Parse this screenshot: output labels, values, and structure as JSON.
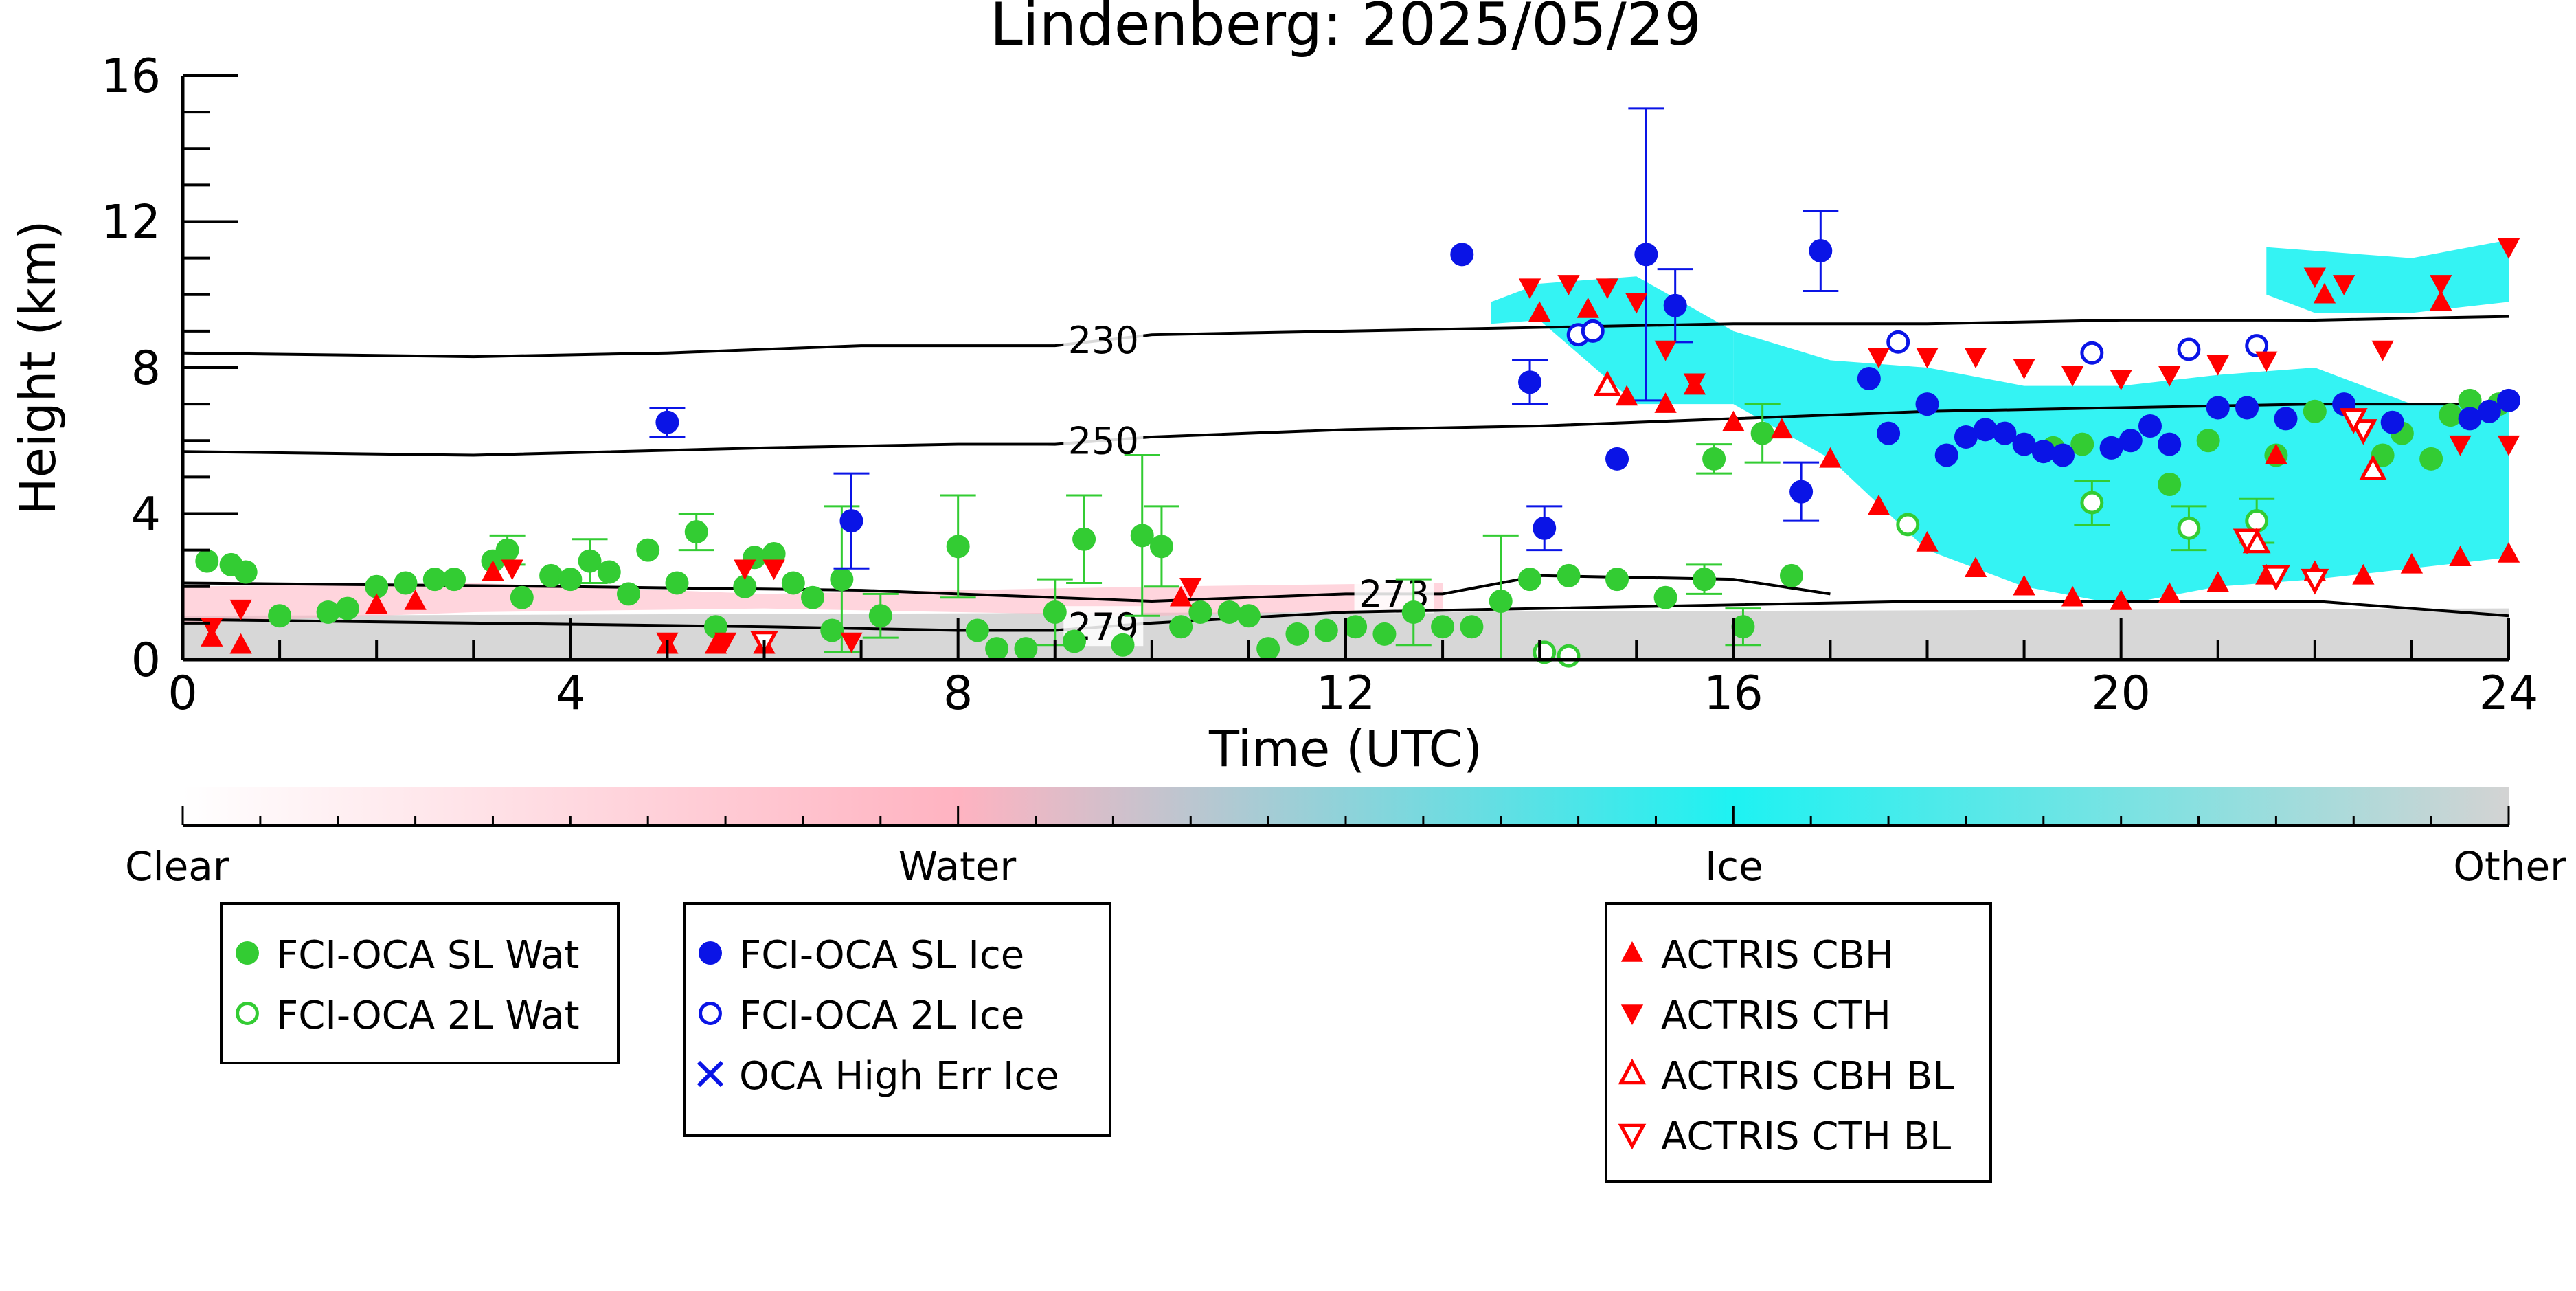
{
  "chart_data": {
    "type": "scatter",
    "title": "Lindenberg: 2025/05/29",
    "xlabel": "Time (UTC)",
    "ylabel": "Height (km)",
    "xlim": [
      0,
      24
    ],
    "ylim": [
      0,
      16
    ],
    "xticks": [
      0,
      4,
      8,
      12,
      16,
      20,
      24
    ],
    "yticks": [
      0,
      4,
      8,
      12,
      16
    ],
    "grid": false,
    "colorbar": {
      "labels": [
        "Clear",
        "Water",
        "Ice",
        "Other"
      ],
      "positions": [
        0,
        0.333,
        0.667,
        1
      ],
      "colors": [
        "#ffffff",
        "#ffb3c1",
        "#1ef2f2",
        "#d3d3d3"
      ]
    },
    "contours": [
      {
        "label": "230",
        "label_x": 9.5,
        "x": [
          0,
          3,
          5,
          7,
          9,
          10,
          12,
          14,
          16,
          18,
          20,
          22,
          24
        ],
        "y": [
          8.4,
          8.3,
          8.4,
          8.6,
          8.6,
          8.9,
          9.0,
          9.1,
          9.2,
          9.2,
          9.3,
          9.3,
          9.4
        ]
      },
      {
        "label": "250",
        "label_x": 9.5,
        "x": [
          0,
          3,
          6,
          8,
          9,
          10,
          12,
          14,
          16,
          18,
          20,
          22,
          24
        ],
        "y": [
          5.7,
          5.6,
          5.8,
          5.9,
          5.9,
          6.1,
          6.3,
          6.4,
          6.6,
          6.8,
          6.9,
          7.0,
          7.0
        ]
      },
      {
        "label": "273",
        "label_x": 12.5,
        "x": [
          0,
          4,
          7,
          9,
          10,
          11,
          12,
          13,
          14,
          16,
          17
        ],
        "y": [
          2.1,
          2.0,
          1.9,
          1.7,
          1.6,
          1.7,
          1.8,
          1.8,
          2.3,
          2.2,
          1.8
        ]
      },
      {
        "label": "279",
        "label_x": 9.5,
        "x": [
          0,
          3,
          6,
          8,
          9,
          10,
          12,
          14,
          16,
          18,
          20,
          22,
          24
        ],
        "y": [
          1.1,
          1.0,
          0.9,
          0.8,
          0.8,
          1.0,
          1.3,
          1.4,
          1.5,
          1.6,
          1.6,
          1.6,
          1.2
        ]
      }
    ],
    "background_regions": [
      {
        "class": "Other",
        "color": "#d3d3d3",
        "x": [
          0,
          24
        ],
        "y0": [
          0,
          0
        ],
        "y1": [
          1.2,
          1.4
        ]
      },
      {
        "class": "Ice",
        "color": "#1ef2f2",
        "x": [
          16,
          17,
          18,
          19,
          20,
          21,
          22,
          23,
          24
        ],
        "y0": [
          7.0,
          5.5,
          3.0,
          2.0,
          1.5,
          2.0,
          2.2,
          2.5,
          2.8
        ],
        "y1": [
          9.0,
          8.2,
          8.0,
          7.5,
          7.5,
          7.8,
          8.0,
          7.0,
          7.0
        ]
      },
      {
        "class": "Ice",
        "color": "#1ef2f2",
        "x": [
          13.5,
          14,
          15,
          16
        ],
        "y0": [
          9.2,
          9.3,
          7.0,
          7.0
        ],
        "y1": [
          9.8,
          10.3,
          10.5,
          9.0
        ]
      },
      {
        "class": "Ice",
        "color": "#1ef2f2",
        "x": [
          21.5,
          22,
          23,
          24
        ],
        "y0": [
          10.0,
          9.5,
          9.5,
          9.8
        ],
        "y1": [
          11.3,
          11.2,
          11.0,
          11.5
        ]
      },
      {
        "class": "Water",
        "color": "#ffb3c1",
        "x": [
          0,
          3,
          6,
          10,
          13
        ],
        "y0": [
          1.0,
          1.3,
          1.4,
          1.2,
          1.4
        ],
        "y1": [
          2.0,
          2.1,
          1.8,
          2.0,
          2.1
        ]
      }
    ],
    "series": [
      {
        "name": "FCI-OCA SL Wat",
        "marker": "circle-filled",
        "color": "#33cc33",
        "points": [
          {
            "x": 0.25,
            "y": 2.7
          },
          {
            "x": 0.5,
            "y": 2.6
          },
          {
            "x": 0.65,
            "y": 2.4
          },
          {
            "x": 1.0,
            "y": 1.2
          },
          {
            "x": 1.5,
            "y": 1.3
          },
          {
            "x": 1.7,
            "y": 1.4
          },
          {
            "x": 2.0,
            "y": 2.0
          },
          {
            "x": 2.3,
            "y": 2.1
          },
          {
            "x": 2.6,
            "y": 2.2
          },
          {
            "x": 2.8,
            "y": 2.2
          },
          {
            "x": 3.2,
            "y": 2.7
          },
          {
            "x": 3.35,
            "y": 3.0,
            "err": 0.4
          },
          {
            "x": 3.5,
            "y": 1.7
          },
          {
            "x": 3.8,
            "y": 2.3
          },
          {
            "x": 4.0,
            "y": 2.2
          },
          {
            "x": 4.2,
            "y": 2.7,
            "err": 0.6
          },
          {
            "x": 4.4,
            "y": 2.4
          },
          {
            "x": 4.6,
            "y": 1.8
          },
          {
            "x": 4.8,
            "y": 3.0
          },
          {
            "x": 5.1,
            "y": 2.1
          },
          {
            "x": 5.3,
            "y": 3.5,
            "err": 0.5
          },
          {
            "x": 5.5,
            "y": 0.9
          },
          {
            "x": 5.8,
            "y": 2.0
          },
          {
            "x": 5.9,
            "y": 2.8
          },
          {
            "x": 6.1,
            "y": 2.9
          },
          {
            "x": 6.3,
            "y": 2.1
          },
          {
            "x": 6.5,
            "y": 1.7
          },
          {
            "x": 6.7,
            "y": 0.8
          },
          {
            "x": 6.8,
            "y": 2.2,
            "err": 2.0
          },
          {
            "x": 7.2,
            "y": 1.2,
            "err": 0.6
          },
          {
            "x": 8.0,
            "y": 3.1,
            "err": 1.4
          },
          {
            "x": 8.2,
            "y": 0.8
          },
          {
            "x": 8.4,
            "y": 0.3
          },
          {
            "x": 8.7,
            "y": 0.3
          },
          {
            "x": 9.0,
            "y": 1.3,
            "err": 0.9
          },
          {
            "x": 9.2,
            "y": 0.5
          },
          {
            "x": 9.3,
            "y": 3.3,
            "err": 1.2
          },
          {
            "x": 9.7,
            "y": 0.4
          },
          {
            "x": 9.9,
            "y": 3.4,
            "err": 2.2
          },
          {
            "x": 10.1,
            "y": 3.1,
            "err": 1.1
          },
          {
            "x": 10.3,
            "y": 0.9
          },
          {
            "x": 10.5,
            "y": 1.3
          },
          {
            "x": 10.8,
            "y": 1.3
          },
          {
            "x": 11.0,
            "y": 1.2
          },
          {
            "x": 11.2,
            "y": 0.3
          },
          {
            "x": 11.5,
            "y": 0.7
          },
          {
            "x": 11.8,
            "y": 0.8
          },
          {
            "x": 12.1,
            "y": 0.9
          },
          {
            "x": 12.4,
            "y": 0.7
          },
          {
            "x": 12.7,
            "y": 1.3,
            "err": 0.9
          },
          {
            "x": 13.0,
            "y": 0.9
          },
          {
            "x": 13.3,
            "y": 0.9
          },
          {
            "x": 13.6,
            "y": 1.6,
            "err": 1.8
          },
          {
            "x": 13.9,
            "y": 2.2
          },
          {
            "x": 14.3,
            "y": 2.3
          },
          {
            "x": 14.8,
            "y": 2.2
          },
          {
            "x": 15.3,
            "y": 1.7
          },
          {
            "x": 15.7,
            "y": 2.2,
            "err": 0.4
          },
          {
            "x": 16.1,
            "y": 0.9,
            "err": 0.5
          },
          {
            "x": 16.6,
            "y": 2.3
          },
          {
            "x": 15.8,
            "y": 5.5,
            "err": 0.4
          },
          {
            "x": 16.3,
            "y": 6.2,
            "err": 0.8
          },
          {
            "x": 19.3,
            "y": 5.8
          },
          {
            "x": 19.6,
            "y": 5.9
          },
          {
            "x": 20.5,
            "y": 4.8
          },
          {
            "x": 20.9,
            "y": 6.0
          },
          {
            "x": 21.6,
            "y": 5.6
          },
          {
            "x": 22.0,
            "y": 6.8
          },
          {
            "x": 22.7,
            "y": 5.6
          },
          {
            "x": 22.9,
            "y": 6.2
          },
          {
            "x": 23.2,
            "y": 5.5
          },
          {
            "x": 23.4,
            "y": 6.7
          },
          {
            "x": 23.6,
            "y": 7.1
          },
          {
            "x": 23.9,
            "y": 7.0
          }
        ]
      },
      {
        "name": "FCI-OCA 2L Wat",
        "marker": "circle-open",
        "color": "#33cc33",
        "points": [
          {
            "x": 14.05,
            "y": 0.2
          },
          {
            "x": 14.3,
            "y": 0.1
          },
          {
            "x": 17.8,
            "y": 3.7
          },
          {
            "x": 19.7,
            "y": 4.3,
            "err": 0.6
          },
          {
            "x": 20.7,
            "y": 3.6,
            "err": 0.6
          },
          {
            "x": 21.4,
            "y": 3.8,
            "err": 0.6
          }
        ]
      },
      {
        "name": "FCI-OCA SL Ice",
        "marker": "circle-filled",
        "color": "#0a14e6",
        "points": [
          {
            "x": 5.0,
            "y": 6.5,
            "err": 0.4
          },
          {
            "x": 6.9,
            "y": 3.8,
            "err": 1.3
          },
          {
            "x": 13.2,
            "y": 11.1
          },
          {
            "x": 13.9,
            "y": 7.6,
            "err": 0.6
          },
          {
            "x": 14.05,
            "y": 3.6,
            "err": 0.6
          },
          {
            "x": 14.8,
            "y": 5.5
          },
          {
            "x": 15.1,
            "y": 11.1,
            "err": 4.0
          },
          {
            "x": 15.4,
            "y": 9.7,
            "err": 1.0
          },
          {
            "x": 16.7,
            "y": 4.6,
            "err": 0.8
          },
          {
            "x": 16.9,
            "y": 11.2,
            "err": 1.1
          },
          {
            "x": 17.4,
            "y": 7.7
          },
          {
            "x": 17.6,
            "y": 6.2
          },
          {
            "x": 18.0,
            "y": 7.0
          },
          {
            "x": 18.2,
            "y": 5.6
          },
          {
            "x": 18.4,
            "y": 6.1
          },
          {
            "x": 18.6,
            "y": 6.3
          },
          {
            "x": 18.8,
            "y": 6.2
          },
          {
            "x": 19.0,
            "y": 5.9
          },
          {
            "x": 19.2,
            "y": 5.7
          },
          {
            "x": 19.4,
            "y": 5.6
          },
          {
            "x": 19.9,
            "y": 5.8
          },
          {
            "x": 20.1,
            "y": 6.0
          },
          {
            "x": 20.3,
            "y": 6.4
          },
          {
            "x": 20.5,
            "y": 5.9
          },
          {
            "x": 21.0,
            "y": 6.9
          },
          {
            "x": 21.3,
            "y": 6.9
          },
          {
            "x": 21.7,
            "y": 6.6
          },
          {
            "x": 22.3,
            "y": 7.0
          },
          {
            "x": 22.8,
            "y": 6.5
          },
          {
            "x": 23.6,
            "y": 6.6
          },
          {
            "x": 23.8,
            "y": 6.8
          },
          {
            "x": 24.0,
            "y": 7.1
          }
        ]
      },
      {
        "name": "FCI-OCA 2L Ice",
        "marker": "circle-open",
        "color": "#0a14e6",
        "points": [
          {
            "x": 14.4,
            "y": 8.9
          },
          {
            "x": 14.55,
            "y": 9.0
          },
          {
            "x": 17.7,
            "y": 8.7
          },
          {
            "x": 19.7,
            "y": 8.4
          },
          {
            "x": 20.7,
            "y": 8.5
          },
          {
            "x": 21.4,
            "y": 8.6
          }
        ]
      },
      {
        "name": "OCA High Err Ice",
        "marker": "x",
        "color": "#0a14e6",
        "points": []
      },
      {
        "name": "ACTRIS CBH",
        "marker": "triangle-up-filled",
        "color": "#ff0000",
        "points": [
          {
            "x": 0.3,
            "y": 0.6
          },
          {
            "x": 0.6,
            "y": 0.4
          },
          {
            "x": 2.0,
            "y": 1.5
          },
          {
            "x": 2.4,
            "y": 1.6
          },
          {
            "x": 3.2,
            "y": 2.4
          },
          {
            "x": 5.0,
            "y": 0.4
          },
          {
            "x": 5.5,
            "y": 0.4
          },
          {
            "x": 6.0,
            "y": 0.4
          },
          {
            "x": 10.3,
            "y": 1.7
          },
          {
            "x": 14.0,
            "y": 9.5
          },
          {
            "x": 14.5,
            "y": 9.6
          },
          {
            "x": 14.9,
            "y": 7.2
          },
          {
            "x": 15.3,
            "y": 7.0
          },
          {
            "x": 15.6,
            "y": 7.5
          },
          {
            "x": 16.0,
            "y": 6.5
          },
          {
            "x": 16.5,
            "y": 6.3
          },
          {
            "x": 17.0,
            "y": 5.5
          },
          {
            "x": 17.5,
            "y": 4.2
          },
          {
            "x": 18.0,
            "y": 3.2
          },
          {
            "x": 18.5,
            "y": 2.5
          },
          {
            "x": 19.0,
            "y": 2.0
          },
          {
            "x": 19.5,
            "y": 1.7
          },
          {
            "x": 20.0,
            "y": 1.6
          },
          {
            "x": 20.5,
            "y": 1.8
          },
          {
            "x": 21.0,
            "y": 2.1
          },
          {
            "x": 21.5,
            "y": 2.3
          },
          {
            "x": 22.0,
            "y": 2.4
          },
          {
            "x": 22.5,
            "y": 2.3
          },
          {
            "x": 23.0,
            "y": 2.6
          },
          {
            "x": 23.5,
            "y": 2.8
          },
          {
            "x": 24.0,
            "y": 2.9
          },
          {
            "x": 21.6,
            "y": 5.6
          },
          {
            "x": 22.1,
            "y": 10.0
          },
          {
            "x": 23.3,
            "y": 9.8
          }
        ]
      },
      {
        "name": "ACTRIS CTH",
        "marker": "triangle-down-filled",
        "color": "#ff0000",
        "points": [
          {
            "x": 0.3,
            "y": 0.9
          },
          {
            "x": 0.6,
            "y": 1.4
          },
          {
            "x": 3.4,
            "y": 2.5
          },
          {
            "x": 5.0,
            "y": 0.5
          },
          {
            "x": 5.6,
            "y": 0.5
          },
          {
            "x": 5.8,
            "y": 2.5
          },
          {
            "x": 6.1,
            "y": 2.5
          },
          {
            "x": 6.9,
            "y": 0.5
          },
          {
            "x": 10.4,
            "y": 2.0
          },
          {
            "x": 13.9,
            "y": 10.2
          },
          {
            "x": 14.3,
            "y": 10.3
          },
          {
            "x": 14.7,
            "y": 10.2
          },
          {
            "x": 15.0,
            "y": 9.8
          },
          {
            "x": 15.3,
            "y": 8.5
          },
          {
            "x": 15.6,
            "y": 7.6
          },
          {
            "x": 17.5,
            "y": 8.3
          },
          {
            "x": 18.0,
            "y": 8.3
          },
          {
            "x": 18.5,
            "y": 8.3
          },
          {
            "x": 19.0,
            "y": 8.0
          },
          {
            "x": 19.5,
            "y": 7.8
          },
          {
            "x": 20.0,
            "y": 7.7
          },
          {
            "x": 20.5,
            "y": 7.8
          },
          {
            "x": 21.0,
            "y": 8.1
          },
          {
            "x": 21.5,
            "y": 8.2
          },
          {
            "x": 22.0,
            "y": 10.5
          },
          {
            "x": 22.3,
            "y": 10.3
          },
          {
            "x": 23.3,
            "y": 10.3
          },
          {
            "x": 24.0,
            "y": 11.3
          },
          {
            "x": 22.7,
            "y": 8.5
          },
          {
            "x": 23.5,
            "y": 5.9
          },
          {
            "x": 24.0,
            "y": 5.9
          }
        ]
      },
      {
        "name": "ACTRIS CBH BL",
        "marker": "triangle-up-open",
        "color": "#ff0000",
        "points": [
          {
            "x": 14.7,
            "y": 7.5
          },
          {
            "x": 21.4,
            "y": 3.2
          },
          {
            "x": 22.6,
            "y": 5.2
          }
        ]
      },
      {
        "name": "ACTRIS CTH BL",
        "marker": "triangle-down-open",
        "color": "#ff0000",
        "points": [
          {
            "x": 6.0,
            "y": 0.5
          },
          {
            "x": 21.3,
            "y": 3.3
          },
          {
            "x": 21.6,
            "y": 2.3
          },
          {
            "x": 22.0,
            "y": 2.2
          },
          {
            "x": 22.5,
            "y": 6.3
          },
          {
            "x": 22.4,
            "y": 6.6
          }
        ]
      }
    ],
    "legends": [
      {
        "entries": [
          "FCI-OCA SL Wat",
          "FCI-OCA 2L Wat"
        ]
      },
      {
        "entries": [
          "FCI-OCA SL Ice",
          "FCI-OCA 2L Ice",
          "OCA High Err Ice"
        ]
      },
      {
        "entries": [
          "ACTRIS CBH",
          "ACTRIS CTH",
          "ACTRIS CBH BL",
          "ACTRIS CTH BL"
        ]
      }
    ]
  }
}
